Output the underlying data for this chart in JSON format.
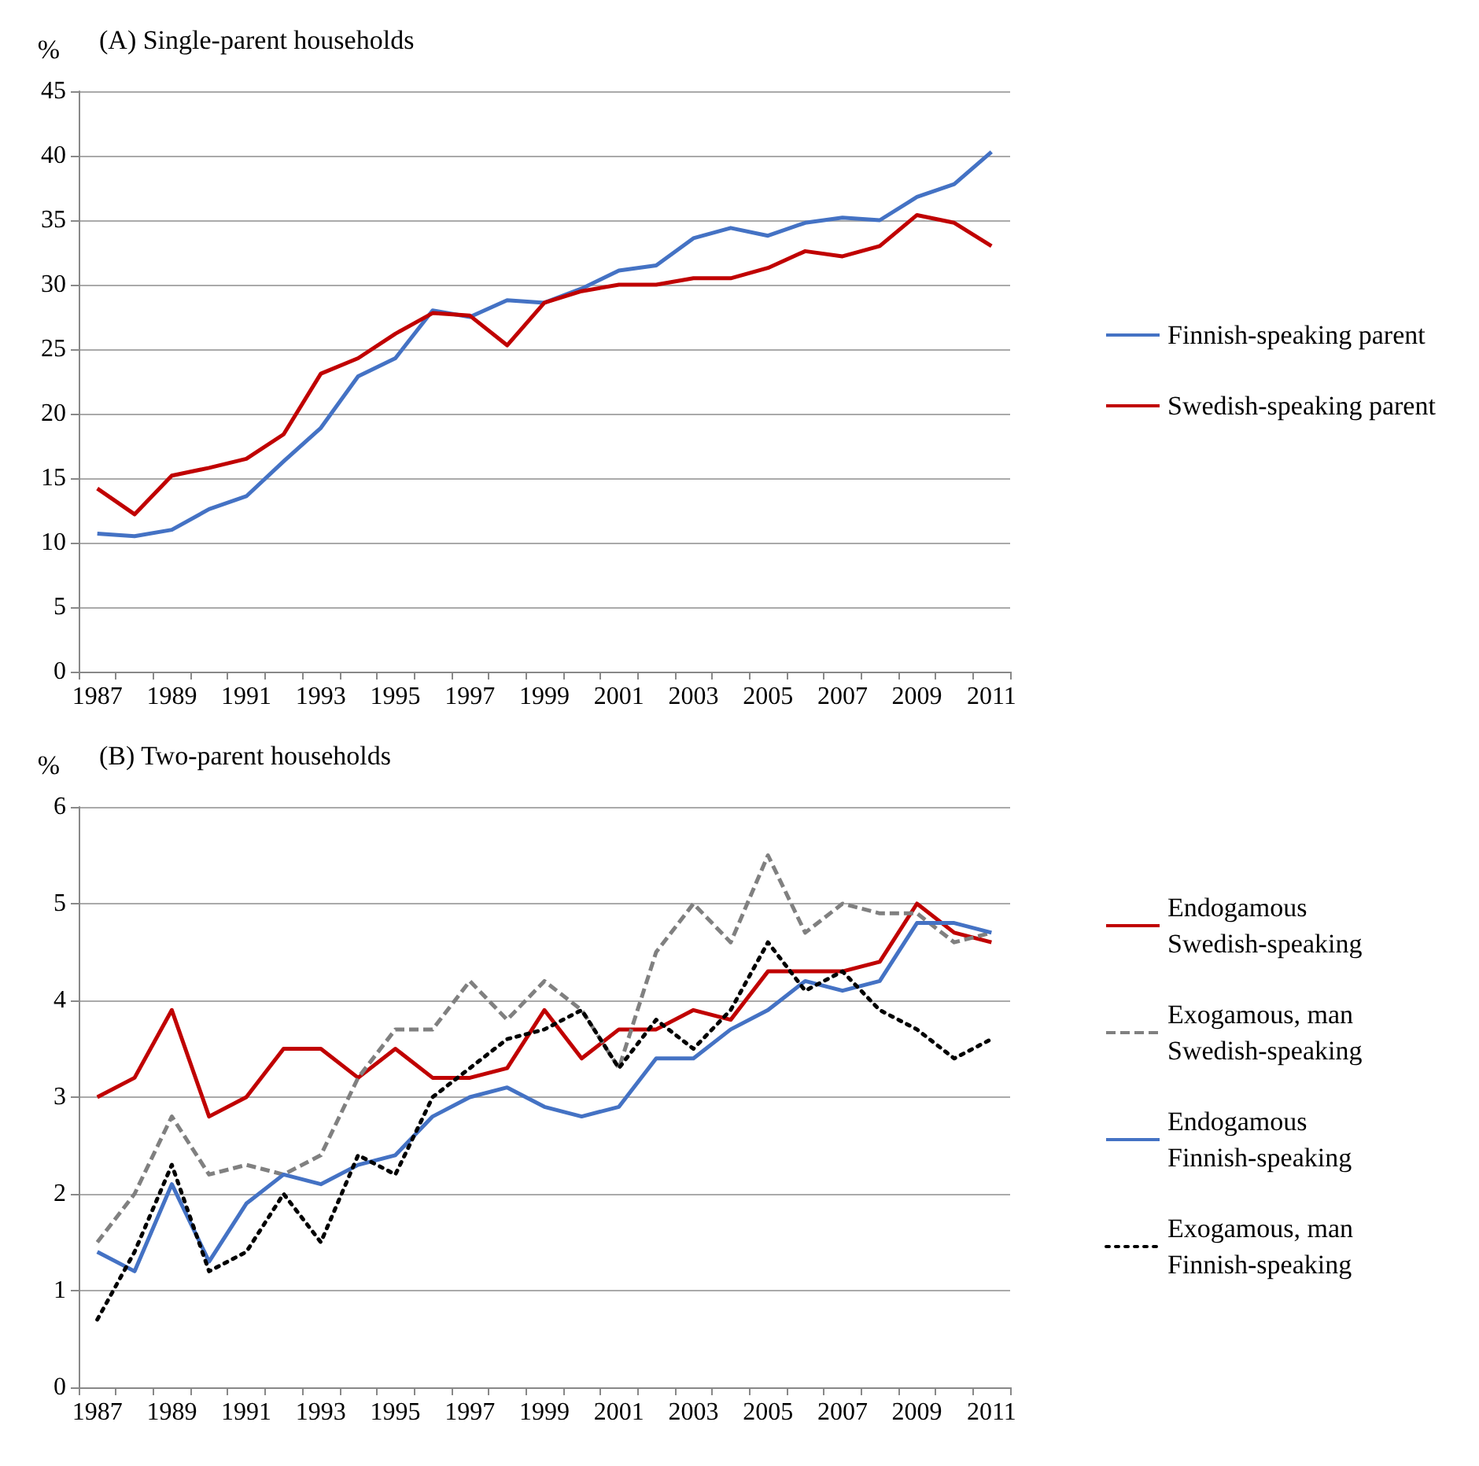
{
  "chart_data": [
    {
      "type": "line",
      "title": "(A) Single-parent households",
      "ylabel": "%",
      "categories": [
        "1987",
        null,
        "1989",
        null,
        "1991",
        null,
        "1993",
        null,
        "1995",
        null,
        "1997",
        null,
        "1999",
        null,
        "2001",
        null,
        "2003",
        null,
        "2005",
        null,
        "2007",
        null,
        "2009",
        null,
        "2011"
      ],
      "series": [
        {
          "name": "Finnish-speaking parent",
          "color": "#4472c4",
          "values": [
            10.7,
            10.5,
            11,
            12.6,
            13.6,
            16.3,
            18.9,
            22.9,
            24.3,
            28,
            27.5,
            28.8,
            28.6,
            29.7,
            31.1,
            31.5,
            33.6,
            34.4,
            33.8,
            34.8,
            35.2,
            35,
            36.8,
            37.8,
            40.3
          ]
        },
        {
          "name": "Swedish-speaking parent",
          "color": "#c00000",
          "values": [
            14.2,
            12.2,
            15.2,
            15.8,
            16.5,
            18.4,
            23.1,
            24.3,
            26.2,
            27.8,
            27.6,
            25.3,
            28.6,
            29.5,
            30,
            30,
            30.5,
            30.5,
            31.3,
            32.6,
            32.2,
            33,
            35.4,
            34.8,
            33
          ]
        }
      ],
      "ylim": [
        0,
        45
      ],
      "yticks": [
        0,
        5,
        10,
        15,
        20,
        25,
        30,
        35,
        40,
        45
      ],
      "grid": "y",
      "legend": "right",
      "marker": "none",
      "line_style": "solid"
    },
    {
      "type": "line",
      "title": "(B) Two-parent households",
      "ylabel": "%",
      "categories": [
        "1987",
        null,
        "1989",
        null,
        "1991",
        null,
        "1993",
        null,
        "1995",
        null,
        "1997",
        null,
        "1999",
        null,
        "2001",
        null,
        "2003",
        null,
        "2005",
        null,
        "2007",
        null,
        "2009",
        null,
        "2011"
      ],
      "series": [
        {
          "name": "Endogamous Swedish-speaking",
          "color": "#c00000",
          "line_style": "solid",
          "values": [
            3.0,
            3.2,
            3.9,
            2.8,
            3.0,
            3.5,
            3.5,
            3.2,
            3.5,
            3.2,
            3.2,
            3.3,
            3.9,
            3.4,
            3.7,
            3.7,
            3.9,
            3.8,
            4.3,
            4.3,
            4.3,
            4.4,
            5.0,
            4.7,
            4.6
          ]
        },
        {
          "name": "Exogamous, man Swedish-speaking",
          "color": "#808080",
          "line_style": "dashed",
          "values": [
            1.5,
            2.0,
            2.8,
            2.2,
            2.3,
            2.2,
            2.4,
            3.2,
            3.7,
            3.7,
            4.2,
            3.8,
            4.2,
            3.9,
            3.3,
            4.5,
            5.0,
            4.6,
            5.5,
            4.7,
            5.0,
            4.9,
            4.9,
            4.6,
            4.7
          ]
        },
        {
          "name": "Endogamous Finnish-speaking",
          "color": "#4472c4",
          "line_style": "solid",
          "values": [
            1.4,
            1.2,
            2.1,
            1.3,
            1.9,
            2.2,
            2.1,
            2.3,
            2.4,
            2.8,
            3.0,
            3.1,
            2.9,
            2.8,
            2.9,
            3.4,
            3.4,
            3.7,
            3.9,
            4.2,
            4.1,
            4.2,
            4.8,
            4.8,
            4.7
          ]
        },
        {
          "name": "Exogamous, man Finnish-speaking",
          "color": "#000000",
          "line_style": "dotted",
          "values": [
            0.7,
            1.4,
            2.3,
            1.2,
            1.4,
            2.0,
            1.5,
            2.4,
            2.2,
            3.0,
            3.3,
            3.6,
            3.7,
            3.9,
            3.3,
            3.8,
            3.5,
            3.9,
            4.6,
            4.1,
            4.3,
            3.9,
            3.7,
            3.4,
            3.6
          ]
        }
      ],
      "ylim": [
        0,
        6
      ],
      "yticks": [
        0,
        1,
        2,
        3,
        4,
        5,
        6
      ],
      "grid": "y",
      "legend": "right",
      "marker": "none"
    }
  ]
}
